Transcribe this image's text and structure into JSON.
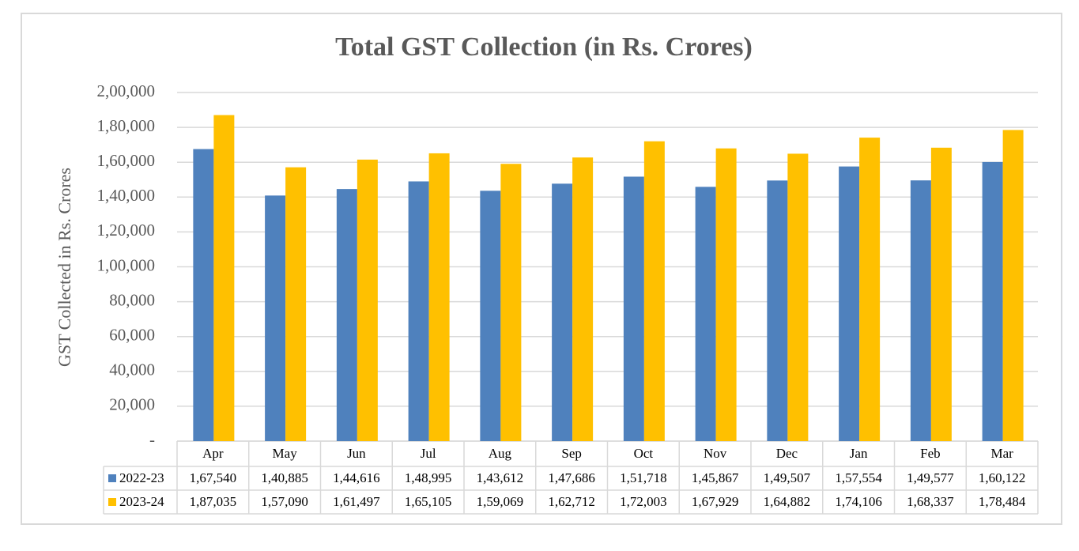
{
  "chart_data": {
    "type": "bar",
    "title": "Total GST Collection (in Rs. Crores)",
    "y_label": "GST Collected in Rs. Crores",
    "categories": [
      "Apr",
      "May",
      "Jun",
      "Jul",
      "Aug",
      "Sep",
      "Oct",
      "Nov",
      "Dec",
      "Jan",
      "Feb",
      "Mar"
    ],
    "series": [
      {
        "name": "2022-23",
        "color": "#4f81bd",
        "values": [
          167540,
          140885,
          144616,
          148995,
          143612,
          147686,
          151718,
          145867,
          149507,
          157554,
          149577,
          160122
        ],
        "value_labels": [
          "1,67,540",
          "1,40,885",
          "1,44,616",
          "1,48,995",
          "1,43,612",
          "1,47,686",
          "1,51,718",
          "1,45,867",
          "1,49,507",
          "1,57,554",
          "1,49,577",
          "1,60,122"
        ]
      },
      {
        "name": "2023-24",
        "color": "#ffc000",
        "values": [
          187035,
          157090,
          161497,
          165105,
          159069,
          162712,
          172003,
          167929,
          164882,
          174106,
          168337,
          178484
        ],
        "value_labels": [
          "1,87,035",
          "1,57,090",
          "1,61,497",
          "1,65,105",
          "1,59,069",
          "1,62,712",
          "1,72,003",
          "1,67,929",
          "1,64,882",
          "1,74,106",
          "1,68,337",
          "1,78,484"
        ]
      }
    ],
    "ylim": [
      0,
      200000
    ],
    "yticks": [
      {
        "value": 0,
        "label": "-"
      },
      {
        "value": 20000,
        "label": "20,000"
      },
      {
        "value": 40000,
        "label": "40,000"
      },
      {
        "value": 60000,
        "label": "60,000"
      },
      {
        "value": 80000,
        "label": "80,000"
      },
      {
        "value": 100000,
        "label": "1,00,000"
      },
      {
        "value": 120000,
        "label": "1,20,000"
      },
      {
        "value": 140000,
        "label": "1,40,000"
      },
      {
        "value": 160000,
        "label": "1,60,000"
      },
      {
        "value": 180000,
        "label": "1,80,000"
      },
      {
        "value": 200000,
        "label": "2,00,000"
      }
    ],
    "grid": true
  }
}
